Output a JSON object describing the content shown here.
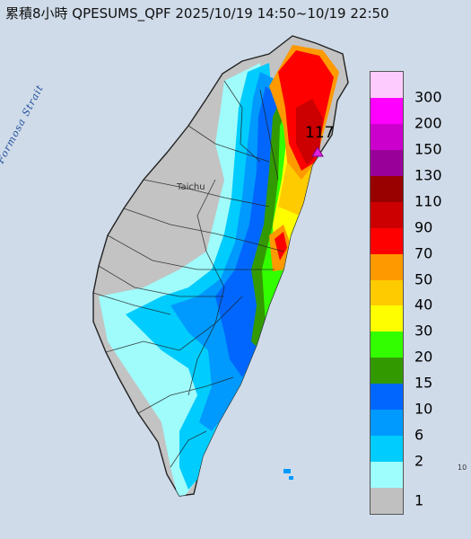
{
  "title": "累積8小時 QPESUMS_QPF 2025/10/19 14:50~10/19 22:50",
  "max_value": "117",
  "map_labels": {
    "strait": "Formosa Strait",
    "city": "Taichu",
    "tiny": "10"
  },
  "legend": {
    "levels": [
      {
        "label": "300",
        "color": "#fecbfe"
      },
      {
        "label": "200",
        "color": "#fe00fe"
      },
      {
        "label": "150",
        "color": "#cc00cc"
      },
      {
        "label": "130",
        "color": "#990099"
      },
      {
        "label": "110",
        "color": "#990000"
      },
      {
        "label": "90",
        "color": "#cc0000"
      },
      {
        "label": "70",
        "color": "#fe0000"
      },
      {
        "label": "50",
        "color": "#fe9900"
      },
      {
        "label": "40",
        "color": "#fecb00"
      },
      {
        "label": "30",
        "color": "#fefe00"
      },
      {
        "label": "20",
        "color": "#33fe00"
      },
      {
        "label": "15",
        "color": "#339900"
      },
      {
        "label": "10",
        "color": "#0066fe"
      },
      {
        "label": "6",
        "color": "#0099fe"
      },
      {
        "label": "2",
        "color": "#00ccfe"
      },
      {
        "label": "1",
        "color": "#9efefe"
      },
      {
        "label": "",
        "color": "#c0c0c0"
      }
    ]
  },
  "colors": {
    "sea": "#c9d6e6",
    "land_no_rain": "#c3c3c3",
    "border": "#222222",
    "max_marker": "#e020e0"
  }
}
